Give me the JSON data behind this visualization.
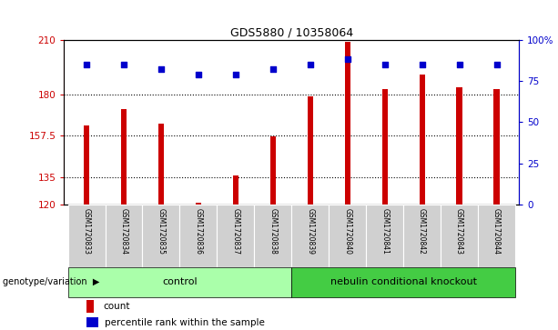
{
  "title": "GDS5880 / 10358064",
  "samples": [
    "GSM1720833",
    "GSM1720834",
    "GSM1720835",
    "GSM1720836",
    "GSM1720837",
    "GSM1720838",
    "GSM1720839",
    "GSM1720840",
    "GSM1720841",
    "GSM1720842",
    "GSM1720843",
    "GSM1720844"
  ],
  "counts": [
    163,
    172,
    164,
    121,
    136,
    157,
    179,
    209,
    183,
    191,
    184,
    183
  ],
  "percentiles": [
    85,
    85,
    82,
    79,
    79,
    82,
    85,
    88,
    85,
    85,
    85,
    85
  ],
  "ymin": 120,
  "ymax": 210,
  "yticks": [
    120,
    135,
    157.5,
    180,
    210
  ],
  "ytick_labels": [
    "120",
    "135",
    "157.5",
    "180",
    "210"
  ],
  "right_yticks": [
    0,
    25,
    50,
    75,
    100
  ],
  "right_ytick_labels": [
    "0",
    "25",
    "50",
    "75",
    "100%"
  ],
  "bar_color": "#cc0000",
  "scatter_color": "#0000cc",
  "ctrl_count": 6,
  "ko_count": 6,
  "control_label": "control",
  "knockout_label": "nebulin conditional knockout",
  "group_label": "genotype/variation",
  "legend_count_label": "count",
  "legend_pct_label": "percentile rank within the sample",
  "control_color": "#aaffaa",
  "knockout_color": "#44cc44",
  "tick_area_color": "#d0d0d0",
  "dotted_lines": [
    135,
    157.5,
    180
  ],
  "percentile_scale_min": 0,
  "percentile_scale_max": 100,
  "bar_width": 0.15
}
